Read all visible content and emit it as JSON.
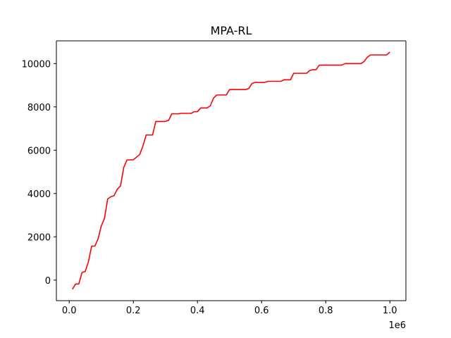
{
  "chart_data": {
    "type": "line",
    "title": "MPA-RL",
    "xlabel": "",
    "ylabel": "",
    "x_offset_label": "1e6",
    "xlim": [
      -40000,
      1050000
    ],
    "ylim": [
      -950,
      11050
    ],
    "x_ticks": [
      0,
      200000,
      400000,
      600000,
      800000,
      1000000
    ],
    "x_tick_labels": [
      "0.0",
      "0.2",
      "0.4",
      "0.6",
      "0.8",
      "1.0"
    ],
    "y_ticks": [
      0,
      2000,
      4000,
      6000,
      8000,
      10000
    ],
    "y_tick_labels": [
      "0",
      "2000",
      "4000",
      "6000",
      "8000",
      "10000"
    ],
    "grid": false,
    "series": [
      {
        "color": "#ff0000",
        "x": [
          10000,
          20000,
          30000,
          40000,
          50000,
          60000,
          70000,
          80000,
          90000,
          100000,
          110000,
          120000,
          130000,
          140000,
          150000,
          160000,
          170000,
          180000,
          190000,
          200000,
          210000,
          220000,
          230000,
          240000,
          250000,
          260000,
          270000,
          280000,
          290000,
          300000,
          310000,
          320000,
          330000,
          340000,
          350000,
          360000,
          370000,
          380000,
          390000,
          400000,
          410000,
          420000,
          430000,
          440000,
          450000,
          460000,
          470000,
          480000,
          490000,
          500000,
          510000,
          520000,
          530000,
          540000,
          550000,
          560000,
          570000,
          580000,
          590000,
          600000,
          610000,
          620000,
          630000,
          640000,
          650000,
          660000,
          670000,
          680000,
          690000,
          700000,
          710000,
          720000,
          730000,
          740000,
          750000,
          760000,
          770000,
          780000,
          790000,
          800000,
          810000,
          820000,
          830000,
          840000,
          850000,
          860000,
          870000,
          880000,
          890000,
          900000,
          910000,
          920000,
          930000,
          940000,
          950000,
          960000,
          970000,
          980000,
          990000,
          1000000
        ],
        "values": [
          -420,
          -180,
          -180,
          350,
          400,
          850,
          1570,
          1570,
          1900,
          2500,
          2850,
          3750,
          3850,
          3900,
          4200,
          4350,
          5200,
          5550,
          5550,
          5560,
          5680,
          5800,
          6200,
          6700,
          6700,
          6700,
          7330,
          7330,
          7330,
          7330,
          7380,
          7680,
          7680,
          7680,
          7700,
          7700,
          7700,
          7700,
          7780,
          7780,
          7950,
          7950,
          7950,
          8050,
          8400,
          8550,
          8550,
          8550,
          8550,
          8800,
          8800,
          8800,
          8800,
          8800,
          8800,
          8850,
          9080,
          9130,
          9130,
          9130,
          9130,
          9180,
          9180,
          9180,
          9180,
          9180,
          9250,
          9250,
          9250,
          9550,
          9550,
          9550,
          9550,
          9550,
          9680,
          9720,
          9720,
          9930,
          9930,
          9930,
          9930,
          9930,
          9930,
          9930,
          9930,
          10000,
          10000,
          10000,
          10000,
          10000,
          10000,
          10100,
          10300,
          10400,
          10400,
          10400,
          10400,
          10400,
          10400,
          10530
        ]
      }
    ]
  }
}
